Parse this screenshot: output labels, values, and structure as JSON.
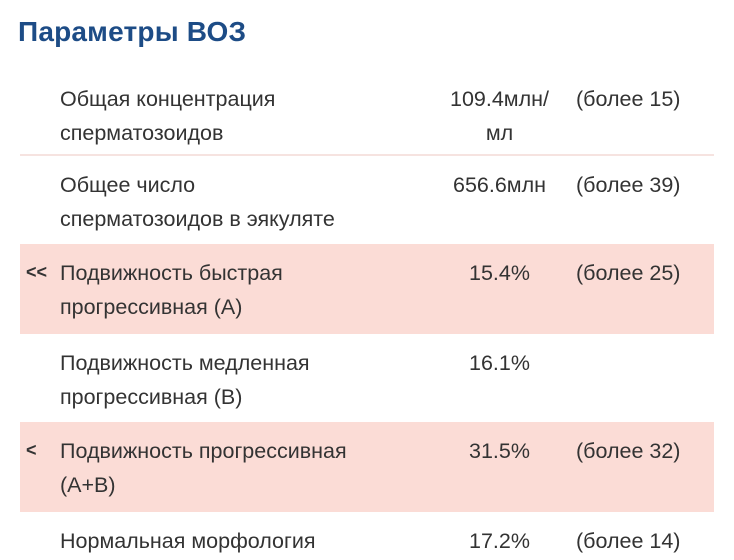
{
  "title": "Параметры ВОЗ",
  "rows": [
    {
      "marker": "",
      "name_l1": "Общая концентрация",
      "name_l2": "сперматозоидов",
      "value_l1": "109.4млн/",
      "value_l2": "мл",
      "norm": "(более 15)"
    },
    {
      "marker": "",
      "name_l1": "Общее число",
      "name_l2": "сперматозоидов в эякуляте",
      "value_l1": "656.6млн",
      "value_l2": "",
      "norm": "(более 39)"
    },
    {
      "marker": "<<",
      "name_l1": "Подвижность быстрая",
      "name_l2": "прогрессивная (А)",
      "value_l1": "15.4%",
      "value_l2": "",
      "norm": "(более 25)"
    },
    {
      "marker": "",
      "name_l1": "Подвижность медленная",
      "name_l2": "прогрессивная (В)",
      "value_l1": "16.1%",
      "value_l2": "",
      "norm": ""
    },
    {
      "marker": "<",
      "name_l1": "Подвижность прогрессивная",
      "name_l2": "(А+В)",
      "value_l1": "31.5%",
      "value_l2": "",
      "norm": "(более 32)"
    },
    {
      "marker": "",
      "name_l1": "Нормальная морфология",
      "name_l2": "",
      "value_l1": "17.2%",
      "value_l2": "",
      "norm": "(более 14)"
    }
  ]
}
